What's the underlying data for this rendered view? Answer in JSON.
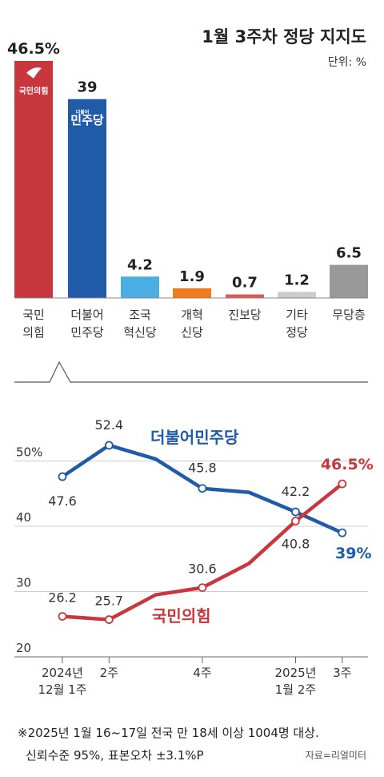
{
  "header": {
    "title": "1월 3주차 정당 지지도",
    "unit": "단위: %"
  },
  "colors": {
    "ppp": "#c8373d",
    "dpk": "#1f5ba8",
    "rebuild": "#4aaee3",
    "reform": "#f07b1a",
    "progressive": "#e0574f",
    "other": "#cccccc",
    "none": "#999999"
  },
  "chart_data": [
    {
      "type": "bar",
      "categories": [
        "국민\n의힘",
        "더불어\n민주당",
        "조국\n혁신당",
        "개혁\n신당",
        "진보당",
        "기타\n정당",
        "무당층"
      ],
      "values": [
        46.5,
        39,
        4.2,
        1.9,
        0.7,
        1.2,
        6.5
      ],
      "value_labels": [
        "46.5%",
        "39",
        "4.2",
        "1.9",
        "0.7",
        "1.2",
        "6.5"
      ],
      "logos": [
        {
          "name": "ppp-logo-icon",
          "text": "국민의힘"
        },
        {
          "name": "dpk-logo-icon",
          "text": "민주당",
          "small": "더불어"
        }
      ]
    },
    {
      "type": "line",
      "x_ticks": [
        {
          "i": 0,
          "label": "2024년\n12월 1주"
        },
        {
          "i": 1,
          "label": "2주"
        },
        {
          "i": 3,
          "label": "4주"
        },
        {
          "i": 5,
          "label": "2025년\n1월 2주"
        },
        {
          "i": 6,
          "label": "3주"
        }
      ],
      "y_ticks": [
        {
          "v": 20,
          "label": "20"
        },
        {
          "v": 30,
          "label": "30"
        },
        {
          "v": 40,
          "label": "40"
        },
        {
          "v": 50,
          "label": "50%"
        }
      ],
      "ylim": [
        20,
        50
      ],
      "series": [
        {
          "name": "더불어민주당",
          "values": [
            47.6,
            52.4,
            50.3,
            45.8,
            45.2,
            42.2,
            39
          ],
          "labels": {
            "0": "47.6",
            "1": "52.4",
            "3": "45.8",
            "5": "42.2",
            "6": "39%"
          }
        },
        {
          "name": "국민의힘",
          "values": [
            26.2,
            25.7,
            29.5,
            30.6,
            34.3,
            40.8,
            46.5
          ],
          "labels": {
            "0": "26.2",
            "1": "25.7",
            "3": "30.6",
            "5": "40.8",
            "6": "46.5%"
          }
        }
      ]
    }
  ],
  "footer": {
    "note_line1": "※2025년 1월 16~17일 전국 만 18세 이상 1004명 대상.",
    "note_line2": "신뢰수준 95%, 표본오차 ±3.1%P",
    "source": "자료=리얼미터"
  }
}
